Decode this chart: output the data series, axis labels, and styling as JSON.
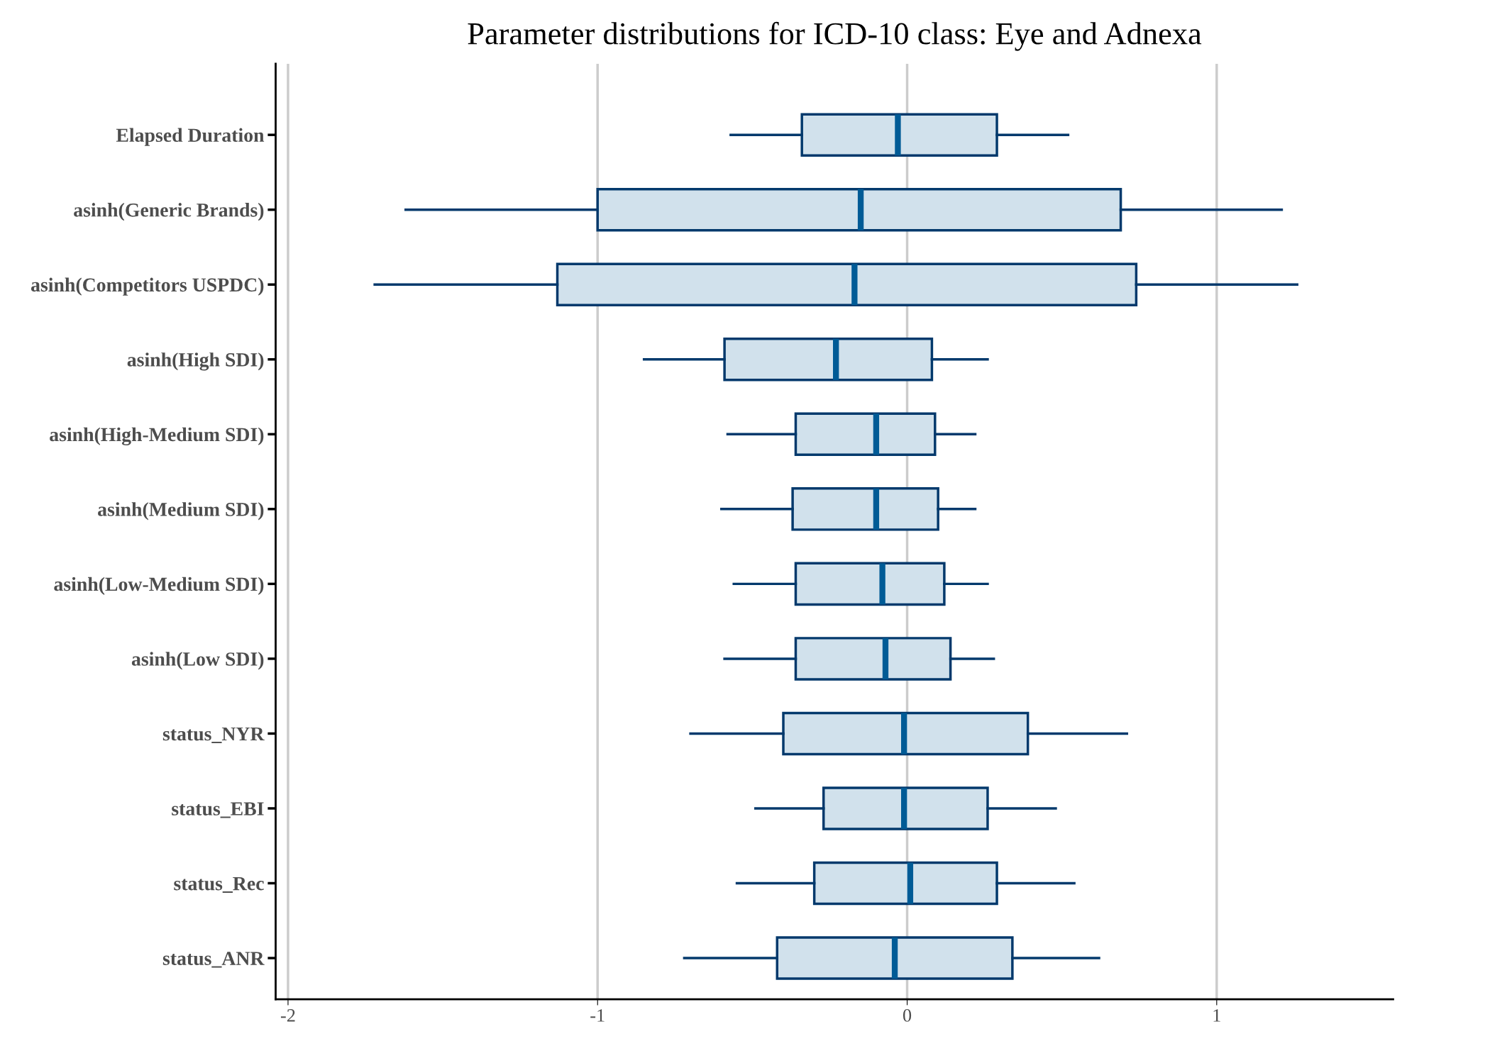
{
  "chart_data": {
    "type": "box",
    "orientation": "horizontal",
    "title": "Parameter distributions for ICD-10 class: Eye and Adnexa",
    "categories": [
      "Elapsed Duration",
      "asinh(Generic Brands)",
      "asinh(Competitors USPDC)",
      "asinh(High SDI)",
      "asinh(High-Medium SDI)",
      "asinh(Medium SDI)",
      "asinh(Low-Medium SDI)",
      "asinh(Low SDI)",
      "status_NYR",
      "status_EBI",
      "status_Rec",
      "status_ANR"
    ],
    "boxes": [
      {
        "low": -0.57,
        "q1": -0.34,
        "median": -0.03,
        "q3": 0.29,
        "high": 0.52
      },
      {
        "low": -1.62,
        "q1": -1.0,
        "median": -0.15,
        "q3": 0.69,
        "high": 1.21
      },
      {
        "low": -1.72,
        "q1": -1.13,
        "median": -0.17,
        "q3": 0.74,
        "high": 1.26
      },
      {
        "low": -0.85,
        "q1": -0.59,
        "median": -0.23,
        "q3": 0.08,
        "high": 0.26
      },
      {
        "low": -0.58,
        "q1": -0.36,
        "median": -0.1,
        "q3": 0.09,
        "high": 0.22
      },
      {
        "low": -0.6,
        "q1": -0.37,
        "median": -0.1,
        "q3": 0.1,
        "high": 0.22
      },
      {
        "low": -0.56,
        "q1": -0.36,
        "median": -0.08,
        "q3": 0.12,
        "high": 0.26
      },
      {
        "low": -0.59,
        "q1": -0.36,
        "median": -0.07,
        "q3": 0.14,
        "high": 0.28
      },
      {
        "low": -0.7,
        "q1": -0.4,
        "median": -0.01,
        "q3": 0.39,
        "high": 0.71
      },
      {
        "low": -0.49,
        "q1": -0.27,
        "median": -0.01,
        "q3": 0.26,
        "high": 0.48
      },
      {
        "low": -0.55,
        "q1": -0.3,
        "median": 0.01,
        "q3": 0.29,
        "high": 0.54
      },
      {
        "low": -0.72,
        "q1": -0.42,
        "median": -0.04,
        "q3": 0.34,
        "high": 0.62
      }
    ],
    "color": "#d1e1ec",
    "xlim": [
      -2.04,
      1.57
    ],
    "xticks": [
      -2,
      -1,
      0,
      1
    ],
    "grid": "x"
  }
}
